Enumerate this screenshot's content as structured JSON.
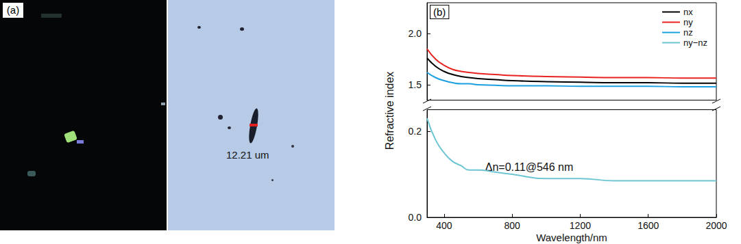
{
  "image_panel": {
    "label": "(a)",
    "scale_text": "12.21 um"
  },
  "chart_data": [
    {
      "type": "line",
      "annotations": [
        "(b)"
      ],
      "legend": "upper right",
      "grid": false,
      "x": [
        300,
        350,
        400,
        450,
        500,
        546,
        600,
        700,
        800,
        1000,
        1200,
        1400,
        1600,
        1800,
        2000
      ],
      "xlim": [
        300,
        2000
      ],
      "xticks": [
        400,
        800,
        1200,
        1600,
        2000
      ],
      "ylim": [
        1.35,
        2.3
      ],
      "yticks": [
        1.5,
        {
          "value": 2,
          "label": "2.0"
        }
      ],
      "tick_labels": "y",
      "series": [
        {
          "name": "nx",
          "color": "#000000",
          "values": [
            1.76,
            1.68,
            1.63,
            1.6,
            1.58,
            1.57,
            1.56,
            1.55,
            1.54,
            1.53,
            1.525,
            1.52,
            1.52,
            1.515,
            1.515
          ]
        },
        {
          "name": "ny",
          "color": "#e8231f",
          "values": [
            1.85,
            1.75,
            1.69,
            1.65,
            1.63,
            1.62,
            1.61,
            1.6,
            1.59,
            1.58,
            1.575,
            1.57,
            1.57,
            1.565,
            1.565
          ]
        },
        {
          "name": "nz",
          "color": "#1a9fe0",
          "values": [
            1.62,
            1.57,
            1.54,
            1.52,
            1.51,
            1.51,
            1.5,
            1.495,
            1.49,
            1.49,
            1.485,
            1.485,
            1.485,
            1.48,
            1.48
          ]
        }
      ]
    },
    {
      "type": "line",
      "annotations": [
        "Δn=0.11@546 nm"
      ],
      "grid": false,
      "xlabel": "Wavelength/nm",
      "ylabel": "Refractive index",
      "x": [
        300,
        350,
        400,
        450,
        500,
        546,
        600,
        700,
        800,
        1000,
        1200,
        1400,
        1600,
        1800,
        2000
      ],
      "xlim": [
        300,
        2000
      ],
      "xticks": [
        400,
        800,
        1200,
        1600,
        2000
      ],
      "ylim": [
        0,
        0.25
      ],
      "yticks": [
        {
          "value": 0,
          "label": "0.0"
        },
        0.2
      ],
      "series": [
        {
          "name": "ny−nz",
          "color": "#6cc5d3",
          "values": [
            0.23,
            0.18,
            0.15,
            0.13,
            0.12,
            0.11,
            0.11,
            0.105,
            0.1,
            0.09,
            0.09,
            0.085,
            0.085,
            0.085,
            0.085
          ]
        }
      ]
    }
  ]
}
